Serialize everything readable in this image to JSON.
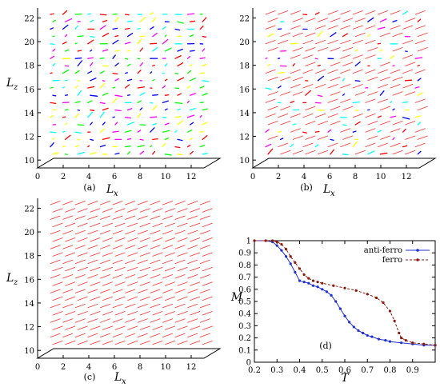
{
  "chart_data": [
    {
      "type": "scatter",
      "panel": "(a)",
      "xlabel_main": "L",
      "xlabel_sub": "x",
      "ylabel_main": "L",
      "ylabel_sub": "z",
      "xticks": [
        "0",
        "2",
        "4",
        "6",
        "8",
        "10",
        "12"
      ],
      "yticks": [
        "10",
        "12",
        "14",
        "16",
        "18",
        "20",
        "22"
      ],
      "xlim": [
        0,
        13
      ],
      "ylim": [
        9,
        22.5
      ],
      "content": "disordered spins",
      "colors": [
        "#ff00ff",
        "#00ffff",
        "#00ff00",
        "#ffff00",
        "#0000ff",
        "#ff0000"
      ]
    },
    {
      "type": "scatter",
      "panel": "(b)",
      "xlabel_main": "L",
      "xlabel_sub": "x",
      "ylabel_main": "",
      "ylabel_sub": "",
      "xticks": [
        "0",
        "2",
        "4",
        "6",
        "8",
        "10",
        "12"
      ],
      "yticks": [
        "10",
        "12",
        "14",
        "16",
        "18",
        "20",
        "22"
      ],
      "xlim": [
        0,
        13
      ],
      "ylim": [
        9,
        22.5
      ],
      "content": "partially ordered spins",
      "colors": [
        "#ff0000",
        "#ff00ff",
        "#ffff00",
        "#00ffff",
        "#0000ff"
      ]
    },
    {
      "type": "scatter",
      "panel": "(c)",
      "xlabel_main": "L",
      "xlabel_sub": "x",
      "ylabel_main": "L",
      "ylabel_sub": "z",
      "xticks": [
        "0",
        "2",
        "4",
        "6",
        "8",
        "10",
        "12"
      ],
      "yticks": [
        "10",
        "12",
        "14",
        "16",
        "18",
        "20",
        "22"
      ],
      "xlim": [
        0,
        13
      ],
      "ylim": [
        9,
        22.5
      ],
      "content": "ordered spins",
      "colors": [
        "#ff0000"
      ]
    },
    {
      "type": "line",
      "panel": "(d)",
      "xlabel": "T",
      "ylabel": "M",
      "xlim": [
        0.2,
        1.0
      ],
      "ylim": [
        0,
        1
      ],
      "xticks": [
        "0.2",
        "0.3",
        "0.4",
        "0.5",
        "0.6",
        "0.7",
        "0.8",
        "0.9"
      ],
      "yticks": [
        "0",
        "0.1",
        "0.2",
        "0.3",
        "0.4",
        "0.5",
        "0.6",
        "0.7",
        "0.8",
        "0.9",
        "1"
      ],
      "legend_position": "top-right",
      "series": [
        {
          "name": "anti-ferro",
          "color": "#1f2fd0",
          "marker": "dot",
          "x": [
            0.2,
            0.25,
            0.28,
            0.3,
            0.32,
            0.34,
            0.36,
            0.38,
            0.4,
            0.42,
            0.44,
            0.46,
            0.48,
            0.5,
            0.52,
            0.54,
            0.56,
            0.58,
            0.6,
            0.62,
            0.64,
            0.66,
            0.68,
            0.7,
            0.72,
            0.75,
            0.78,
            0.8,
            0.85,
            0.9,
            0.95,
            1.0
          ],
          "y": [
            1.0,
            1.0,
            0.99,
            0.96,
            0.92,
            0.87,
            0.81,
            0.74,
            0.67,
            0.66,
            0.65,
            0.63,
            0.62,
            0.6,
            0.58,
            0.55,
            0.5,
            0.44,
            0.38,
            0.33,
            0.29,
            0.26,
            0.24,
            0.22,
            0.21,
            0.19,
            0.18,
            0.17,
            0.16,
            0.15,
            0.14,
            0.14
          ]
        },
        {
          "name": "ferro",
          "color": "#8b1a0e",
          "marker": "dot",
          "x": [
            0.2,
            0.25,
            0.28,
            0.3,
            0.32,
            0.34,
            0.36,
            0.38,
            0.4,
            0.42,
            0.44,
            0.46,
            0.48,
            0.5,
            0.55,
            0.6,
            0.65,
            0.7,
            0.74,
            0.77,
            0.8,
            0.82,
            0.84,
            0.85,
            0.87,
            0.9,
            0.95,
            1.0
          ],
          "y": [
            1.0,
            1.0,
            1.0,
            0.99,
            0.97,
            0.93,
            0.87,
            0.82,
            0.77,
            0.72,
            0.69,
            0.67,
            0.66,
            0.65,
            0.63,
            0.61,
            0.59,
            0.56,
            0.53,
            0.49,
            0.42,
            0.34,
            0.24,
            0.2,
            0.18,
            0.16,
            0.15,
            0.14
          ]
        }
      ]
    }
  ]
}
